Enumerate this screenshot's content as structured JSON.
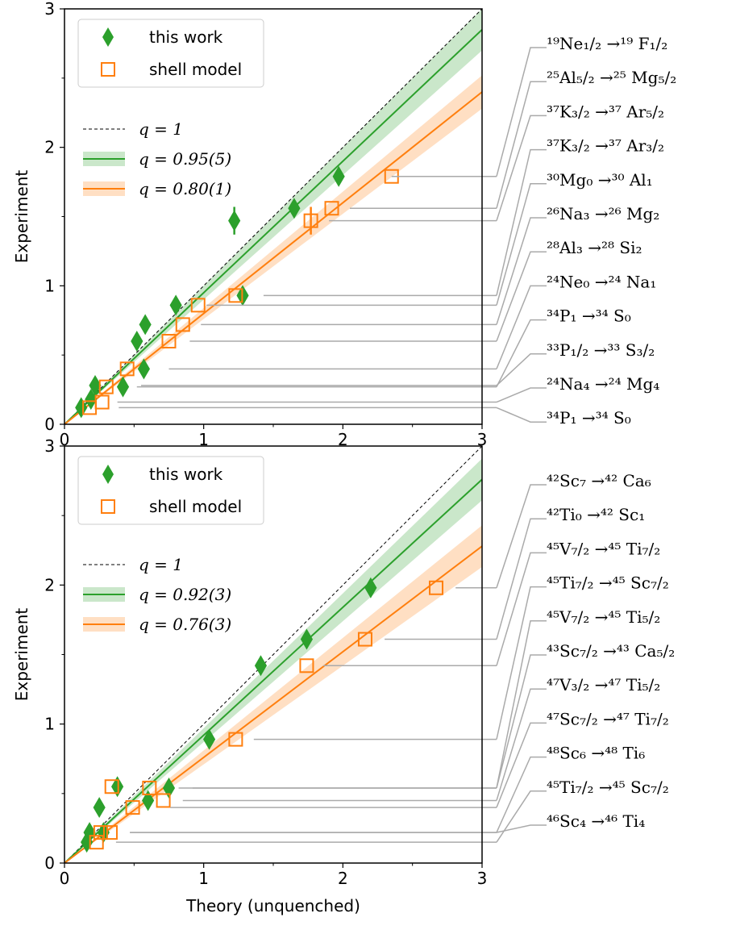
{
  "chart_data": [
    {
      "type": "scatter",
      "xlabel": "",
      "ylabel": "Experiment",
      "xlim": [
        0,
        3
      ],
      "ylim": [
        0,
        3
      ],
      "xticks": [
        "0",
        "1",
        "2",
        "3"
      ],
      "yticks": [
        "0",
        "1",
        "2",
        "3"
      ],
      "legend_markers": [
        {
          "name": "this work",
          "marker": "diamond",
          "color": "#2ca02c"
        },
        {
          "name": "shell model",
          "marker": "open-square",
          "color": "#ff7f0e"
        }
      ],
      "legend_lines": [
        {
          "label": "q = 1",
          "style": "dashed",
          "color": "#000000",
          "slope": 1.0
        },
        {
          "label": "q = 0.95(5)",
          "style": "solid",
          "color": "#2ca02c",
          "slope": 0.95,
          "band": 0.05
        },
        {
          "label": "q = 0.80(1)",
          "style": "solid",
          "color": "#ff7f0e",
          "slope": 0.8,
          "band": 0.04
        }
      ],
      "series": [
        {
          "name": "this work",
          "marker": "diamond",
          "color": "#2ca02c",
          "points": [
            {
              "x": 0.12,
              "y": 0.12
            },
            {
              "x": 0.19,
              "y": 0.18
            },
            {
              "x": 0.22,
              "y": 0.28
            },
            {
              "x": 0.42,
              "y": 0.27
            },
            {
              "x": 0.52,
              "y": 0.6
            },
            {
              "x": 0.57,
              "y": 0.4
            },
            {
              "x": 0.58,
              "y": 0.72
            },
            {
              "x": 0.8,
              "y": 0.86
            },
            {
              "x": 1.22,
              "y": 1.47,
              "yerr": 0.1
            },
            {
              "x": 1.28,
              "y": 0.93
            },
            {
              "x": 1.65,
              "y": 1.56
            },
            {
              "x": 1.97,
              "y": 1.79
            }
          ]
        },
        {
          "name": "shell model",
          "marker": "open-square",
          "color": "#ff7f0e",
          "points": [
            {
              "x": 0.18,
              "y": 0.12
            },
            {
              "x": 0.27,
              "y": 0.16
            },
            {
              "x": 0.3,
              "y": 0.27
            },
            {
              "x": 0.45,
              "y": 0.4
            },
            {
              "x": 0.75,
              "y": 0.6
            },
            {
              "x": 0.85,
              "y": 0.72
            },
            {
              "x": 0.96,
              "y": 0.86
            },
            {
              "x": 1.23,
              "y": 0.93
            },
            {
              "x": 1.77,
              "y": 1.47,
              "yerr": 0.1
            },
            {
              "x": 1.92,
              "y": 1.56
            },
            {
              "x": 2.35,
              "y": 1.79
            }
          ]
        }
      ],
      "transitions": [
        "¹⁹Ne₁/₂ →¹⁹ F₁/₂",
        "²⁵Al₅/₂ →²⁵ Mg₅/₂",
        "³⁷K₃/₂ →³⁷ Ar₅/₂",
        "³⁷K₃/₂ →³⁷ Ar₃/₂",
        "³⁰Mg₀ →³⁰ Al₁",
        "²⁶Na₃ →²⁶ Mg₂",
        "²⁸Al₃ →²⁸ Si₂",
        "²⁴Ne₀ →²⁴ Na₁",
        "³⁴P₁ →³⁴ S₀",
        "³³P₁/₂ →³³ S₃/₂",
        "²⁴Na₄ →²⁴ Mg₄",
        "³⁴P₁ →³⁴ S₀"
      ],
      "connector_targets": [
        {
          "x": 2.35,
          "y": 1.79
        },
        {
          "x": 2.05,
          "y": 1.56
        },
        {
          "x": 1.9,
          "y": 1.47
        },
        {
          "x": 1.43,
          "y": 0.93
        },
        {
          "x": 1.02,
          "y": 0.86
        },
        {
          "x": 0.98,
          "y": 0.72
        },
        {
          "x": 0.9,
          "y": 0.6
        },
        {
          "x": 0.75,
          "y": 0.4
        },
        {
          "x": 0.52,
          "y": 0.27
        },
        {
          "x": 0.55,
          "y": 0.28
        },
        {
          "x": 0.38,
          "y": 0.16
        },
        {
          "x": 0.39,
          "y": 0.12
        }
      ]
    },
    {
      "type": "scatter",
      "xlabel": "Theory (unquenched)",
      "ylabel": "Experiment",
      "xlim": [
        0,
        3
      ],
      "ylim": [
        0,
        3
      ],
      "xticks": [
        "0",
        "1",
        "2",
        "3"
      ],
      "yticks": [
        "0",
        "1",
        "2",
        "3"
      ],
      "legend_markers": [
        {
          "name": "this work",
          "marker": "diamond",
          "color": "#2ca02c"
        },
        {
          "name": "shell model",
          "marker": "open-square",
          "color": "#ff7f0e"
        }
      ],
      "legend_lines": [
        {
          "label": "q = 1",
          "style": "dashed",
          "color": "#000000",
          "slope": 1.0
        },
        {
          "label": "q = 0.92(3)",
          "style": "solid",
          "color": "#2ca02c",
          "slope": 0.92,
          "band": 0.05
        },
        {
          "label": "q = 0.76(3)",
          "style": "solid",
          "color": "#ff7f0e",
          "slope": 0.76,
          "band": 0.05
        }
      ],
      "series": [
        {
          "name": "this work",
          "marker": "diamond",
          "color": "#2ca02c",
          "points": [
            {
              "x": 0.16,
              "y": 0.15
            },
            {
              "x": 0.18,
              "y": 0.22
            },
            {
              "x": 0.25,
              "y": 0.4
            },
            {
              "x": 0.28,
              "y": 0.22
            },
            {
              "x": 0.38,
              "y": 0.55
            },
            {
              "x": 0.6,
              "y": 0.45
            },
            {
              "x": 0.75,
              "y": 0.54
            },
            {
              "x": 1.04,
              "y": 0.89
            },
            {
              "x": 1.41,
              "y": 1.42
            },
            {
              "x": 1.74,
              "y": 1.61
            },
            {
              "x": 2.2,
              "y": 1.98
            }
          ]
        },
        {
          "name": "shell model",
          "marker": "open-square",
          "color": "#ff7f0e",
          "points": [
            {
              "x": 0.23,
              "y": 0.15
            },
            {
              "x": 0.26,
              "y": 0.22
            },
            {
              "x": 0.33,
              "y": 0.22
            },
            {
              "x": 0.34,
              "y": 0.55
            },
            {
              "x": 0.49,
              "y": 0.4
            },
            {
              "x": 0.61,
              "y": 0.54
            },
            {
              "x": 0.71,
              "y": 0.45
            },
            {
              "x": 1.23,
              "y": 0.89
            },
            {
              "x": 1.74,
              "y": 1.42
            },
            {
              "x": 2.16,
              "y": 1.61
            },
            {
              "x": 2.67,
              "y": 1.98
            }
          ]
        }
      ],
      "transitions": [
        "⁴²Sc₇ →⁴² Ca₆",
        "⁴²Ti₀ →⁴² Sc₁",
        "⁴⁵V₇/₂ →⁴⁵ Ti₇/₂",
        "⁴⁵Ti₇/₂ →⁴⁵ Sc₇/₂",
        "⁴⁵V₇/₂ →⁴⁵ Ti₅/₂",
        "⁴³Sc₇/₂ →⁴³ Ca₅/₂",
        "⁴⁷V₃/₂ →⁴⁷ Ti₅/₂",
        "⁴⁷Sc₇/₂ →⁴⁷ Ti₇/₂",
        "⁴⁸Sc₆ →⁴⁸ Ti₆",
        "⁴⁵Ti₇/₂ →⁴⁵ Sc₇/₂",
        "⁴⁶Sc₄ →⁴⁶ Ti₄"
      ],
      "connector_targets": [
        {
          "x": 2.81,
          "y": 1.98
        },
        {
          "x": 2.3,
          "y": 1.61
        },
        {
          "x": 1.86,
          "y": 1.42
        },
        {
          "x": 1.36,
          "y": 0.89
        },
        {
          "x": 0.92,
          "y": 0.54
        },
        {
          "x": 0.82,
          "y": 0.54
        },
        {
          "x": 0.85,
          "y": 0.45
        },
        {
          "x": 0.76,
          "y": 0.4
        },
        {
          "x": 0.47,
          "y": 0.22
        },
        {
          "x": 0.37,
          "y": 0.15
        },
        {
          "x": 0.47,
          "y": 0.22
        }
      ]
    }
  ]
}
